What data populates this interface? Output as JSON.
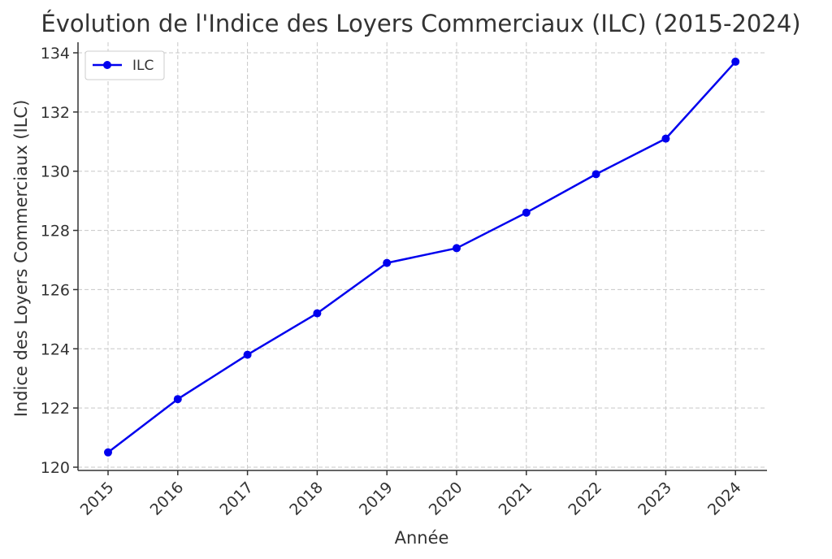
{
  "chart_data": {
    "type": "line",
    "title": "Évolution de l'Indice des Loyers Commerciaux (ILC) (2015-2024)",
    "xlabel": "Année",
    "ylabel": "Indice des Loyers Commerciaux (ILC)",
    "categories": [
      "2015",
      "2016",
      "2017",
      "2018",
      "2019",
      "2020",
      "2021",
      "2022",
      "2023",
      "2024"
    ],
    "series": [
      {
        "name": "ILC",
        "values": [
          120.5,
          122.3,
          123.8,
          125.2,
          126.9,
          127.4,
          128.6,
          129.9,
          131.1,
          133.7
        ]
      }
    ],
    "ylim": [
      120,
      134
    ],
    "yticks": [
      "120",
      "122",
      "124",
      "126",
      "128",
      "130",
      "132",
      "134"
    ],
    "grid": true,
    "legend_position": "upper-left",
    "colors": {
      "series": "#0000ee",
      "text": "#333333",
      "grid": "#c8c8c8"
    }
  }
}
